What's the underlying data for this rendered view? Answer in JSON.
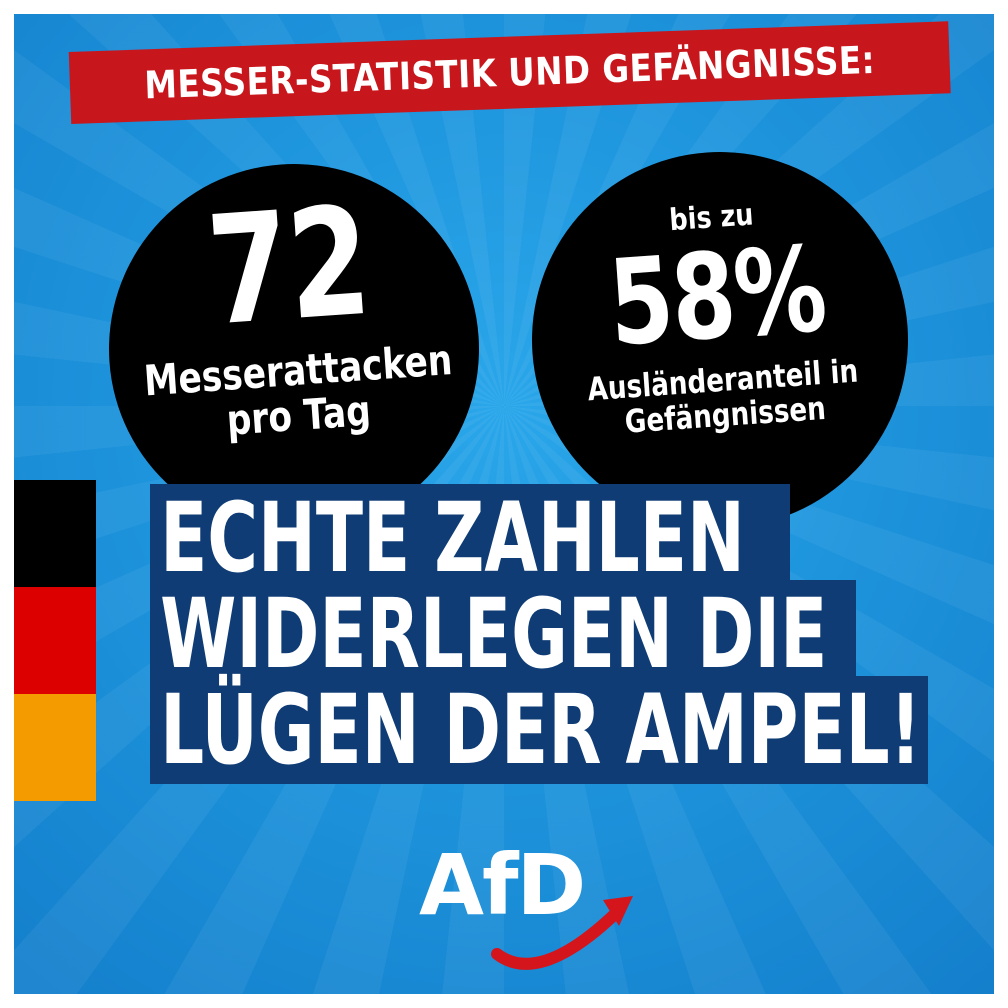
{
  "banner": {
    "text": "MESSER-STATISTIK UND GEFÄNGNISSE:"
  },
  "circle_left": {
    "number": "72",
    "label_line1": "Messerattacken",
    "label_line2": "pro Tag"
  },
  "circle_right": {
    "prefix": "bis zu",
    "number": "58%",
    "label_line1": "Ausländeranteil in",
    "label_line2": "Gefängnissen"
  },
  "headline": {
    "line1": "ECHTE ZAHLEN",
    "line2": "WIDERLEGEN DIE",
    "line3": "LÜGEN DER AMPEL!"
  },
  "logo": {
    "text": "AfD",
    "icon": "red-swoosh-arrow-icon"
  },
  "colors": {
    "background_blue": "#1e95dd",
    "banner_red": "#c8161d",
    "headline_navy": "#0f3c75",
    "flag_black": "#000000",
    "flag_red": "#dd0000",
    "flag_gold": "#f49b00"
  }
}
